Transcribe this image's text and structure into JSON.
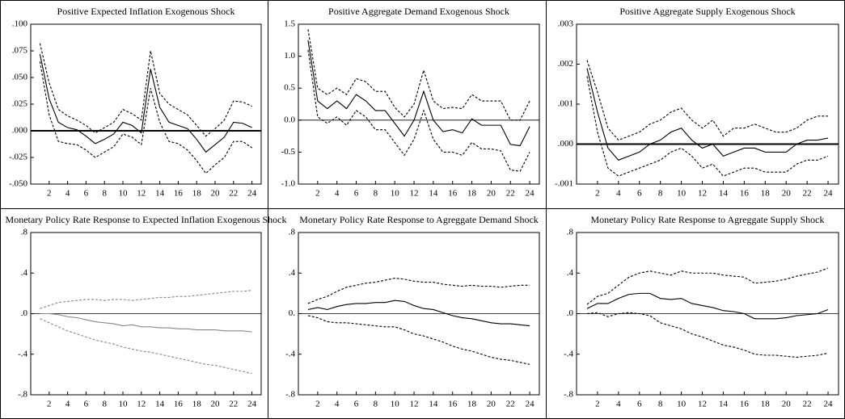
{
  "chart_data": [
    {
      "type": "line",
      "title": "Positive Expected Inflation Exogenous Shock",
      "x": [
        1,
        2,
        3,
        4,
        5,
        6,
        7,
        8,
        9,
        10,
        11,
        12,
        13,
        14,
        15,
        16,
        17,
        18,
        19,
        20,
        21,
        22,
        23,
        24
      ],
      "xlim": [
        0,
        25
      ],
      "xticks": [
        2,
        4,
        6,
        8,
        10,
        12,
        14,
        16,
        18,
        20,
        22,
        24
      ],
      "ylim": [
        -0.05,
        0.1
      ],
      "yticks": [
        {
          "value": 0.1,
          "label": ".100"
        },
        {
          "value": 0.075,
          "label": ".075"
        },
        {
          "value": 0.05,
          "label": ".050"
        },
        {
          "value": 0.025,
          "label": ".025"
        },
        {
          "value": 0,
          "label": ".000"
        },
        {
          "value": -0.025,
          "label": "-.025"
        },
        {
          "value": -0.05,
          "label": "-.050"
        }
      ],
      "reference_line": 0,
      "reference_line_bold": true,
      "series": [
        {
          "color": "#000000",
          "style": "solid",
          "values": [
            0.072,
            0.03,
            0.008,
            0.003,
            0.001,
            -0.005,
            -0.012,
            -0.008,
            -0.003,
            0.008,
            0.005,
            -0.002,
            0.058,
            0.022,
            0.008,
            0.005,
            0.002,
            -0.008,
            -0.02,
            -0.013,
            -0.006,
            0.008,
            0.007,
            0.003
          ]
        },
        {
          "color": "#000000",
          "style": "dashed",
          "values": [
            0.082,
            0.045,
            0.02,
            0.014,
            0.01,
            0.005,
            -0.002,
            0.003,
            0.008,
            0.02,
            0.016,
            0.01,
            0.075,
            0.035,
            0.025,
            0.02,
            0.015,
            0.005,
            -0.005,
            0.002,
            0.01,
            0.028,
            0.027,
            0.023
          ]
        },
        {
          "color": "#000000",
          "style": "dashed",
          "values": [
            0.065,
            0.015,
            -0.01,
            -0.012,
            -0.013,
            -0.018,
            -0.025,
            -0.02,
            -0.015,
            -0.003,
            -0.006,
            -0.013,
            0.04,
            0.008,
            -0.01,
            -0.012,
            -0.018,
            -0.028,
            -0.04,
            -0.032,
            -0.025,
            -0.01,
            -0.01,
            -0.016
          ]
        }
      ]
    },
    {
      "type": "line",
      "title": "Positive Aggregate Demand Exogenous Shock",
      "x": [
        1,
        2,
        3,
        4,
        5,
        6,
        7,
        8,
        9,
        10,
        11,
        12,
        13,
        14,
        15,
        16,
        17,
        18,
        19,
        20,
        21,
        22,
        23,
        24
      ],
      "xlim": [
        0,
        25
      ],
      "xticks": [
        2,
        4,
        6,
        8,
        10,
        12,
        14,
        16,
        18,
        20,
        22,
        24
      ],
      "ylim": [
        -1,
        1.5
      ],
      "yticks": [
        {
          "value": 1.5,
          "label": "1.5"
        },
        {
          "value": 1,
          "label": "1.0"
        },
        {
          "value": 0.5,
          "label": "0.5"
        },
        {
          "value": 0,
          "label": "0.0"
        },
        {
          "value": -0.5,
          "label": "-0.5"
        },
        {
          "value": -1,
          "label": "-1.0"
        }
      ],
      "reference_line": 0,
      "reference_line_bold": false,
      "series": [
        {
          "color": "#000000",
          "style": "solid",
          "values": [
            1.25,
            0.3,
            0.18,
            0.3,
            0.18,
            0.4,
            0.3,
            0.15,
            0.15,
            -0.05,
            -0.25,
            0.0,
            0.45,
            0.0,
            -0.18,
            -0.15,
            -0.2,
            0.02,
            -0.08,
            -0.08,
            -0.08,
            -0.38,
            -0.4,
            -0.1
          ]
        },
        {
          "color": "#000000",
          "style": "dashed",
          "values": [
            1.42,
            0.5,
            0.4,
            0.5,
            0.4,
            0.65,
            0.6,
            0.45,
            0.45,
            0.2,
            0.05,
            0.25,
            0.78,
            0.3,
            0.18,
            0.2,
            0.18,
            0.4,
            0.3,
            0.3,
            0.3,
            0.0,
            0.0,
            0.3
          ]
        },
        {
          "color": "#000000",
          "style": "dashed",
          "values": [
            1.1,
            0.05,
            -0.05,
            0.05,
            -0.08,
            0.15,
            0.05,
            -0.15,
            -0.15,
            -0.35,
            -0.55,
            -0.3,
            0.15,
            -0.3,
            -0.5,
            -0.5,
            -0.55,
            -0.35,
            -0.45,
            -0.45,
            -0.48,
            -0.78,
            -0.8,
            -0.5
          ]
        }
      ]
    },
    {
      "type": "line",
      "title": "Positive Aggregate Supply Exogenous Shock",
      "x": [
        1,
        2,
        3,
        4,
        5,
        6,
        7,
        8,
        9,
        10,
        11,
        12,
        13,
        14,
        15,
        16,
        17,
        18,
        19,
        20,
        21,
        22,
        23,
        24
      ],
      "xlim": [
        0,
        25
      ],
      "xticks": [
        2,
        4,
        6,
        8,
        10,
        12,
        14,
        16,
        18,
        20,
        22,
        24
      ],
      "ylim": [
        -0.001,
        0.003
      ],
      "yticks": [
        {
          "value": 0.003,
          "label": ".003"
        },
        {
          "value": 0.002,
          "label": ".002"
        },
        {
          "value": 0.001,
          "label": ".001"
        },
        {
          "value": 0,
          "label": ".000"
        },
        {
          "value": -0.001,
          "label": "-.001"
        }
      ],
      "reference_line": 0,
      "reference_line_bold": true,
      "series": [
        {
          "color": "#000000",
          "style": "solid",
          "values": [
            0.0019,
            0.0008,
            -0.0001,
            -0.0004,
            -0.0003,
            -0.0002,
            0.0,
            0.0001,
            0.0003,
            0.0004,
            0.0001,
            -0.0001,
            0.0,
            -0.0003,
            -0.0002,
            -0.0001,
            -0.0001,
            -0.0002,
            -0.0002,
            -0.0002,
            0.0,
            0.0001,
            0.0001,
            0.00015
          ]
        },
        {
          "color": "#000000",
          "style": "dashed",
          "values": [
            0.0021,
            0.0013,
            0.0004,
            0.0001,
            0.0002,
            0.0003,
            0.0005,
            0.0006,
            0.0008,
            0.0009,
            0.0006,
            0.0004,
            0.0006,
            0.0002,
            0.0004,
            0.0004,
            0.0005,
            0.0004,
            0.0003,
            0.0003,
            0.0004,
            0.0006,
            0.0007,
            0.0007
          ]
        },
        {
          "color": "#000000",
          "style": "dashed",
          "values": [
            0.0017,
            0.0003,
            -0.0006,
            -0.0008,
            -0.0007,
            -0.0006,
            -0.0005,
            -0.0004,
            -0.0002,
            -0.0001,
            -0.0003,
            -0.0006,
            -0.0005,
            -0.0008,
            -0.0007,
            -0.0006,
            -0.0006,
            -0.0007,
            -0.0007,
            -0.0007,
            -0.0005,
            -0.0004,
            -0.0004,
            -0.0003
          ]
        }
      ]
    },
    {
      "type": "line",
      "title": "Monetary Policy Rate Response to Expected Inflation Exogenous Shock",
      "x": [
        1,
        2,
        3,
        4,
        5,
        6,
        7,
        8,
        9,
        10,
        11,
        12,
        13,
        14,
        15,
        16,
        17,
        18,
        19,
        20,
        21,
        22,
        23,
        24
      ],
      "xlim": [
        0,
        25
      ],
      "xticks": [
        2,
        4,
        6,
        8,
        10,
        12,
        14,
        16,
        18,
        20,
        22,
        24
      ],
      "ylim": [
        -0.8,
        0.8
      ],
      "yticks": [
        {
          "value": 0.8,
          "label": ".8"
        },
        {
          "value": 0.4,
          "label": ".4"
        },
        {
          "value": 0,
          "label": ".0"
        },
        {
          "value": -0.4,
          "label": "-.4"
        },
        {
          "value": -0.8,
          "label": "-.8"
        }
      ],
      "reference_line": 0,
      "reference_line_bold": false,
      "series": [
        {
          "color": "#888888",
          "style": "solid",
          "values": [
            0,
            0,
            -0.01,
            -0.03,
            -0.04,
            -0.06,
            -0.08,
            -0.09,
            -0.1,
            -0.12,
            -0.11,
            -0.13,
            -0.13,
            -0.14,
            -0.14,
            -0.15,
            -0.15,
            -0.16,
            -0.16,
            -0.16,
            -0.17,
            -0.17,
            -0.17,
            -0.18
          ]
        },
        {
          "color": "#888888",
          "style": "dashed",
          "values": [
            0.05,
            0.08,
            0.11,
            0.12,
            0.13,
            0.14,
            0.14,
            0.13,
            0.14,
            0.14,
            0.13,
            0.14,
            0.15,
            0.16,
            0.16,
            0.17,
            0.17,
            0.18,
            0.19,
            0.2,
            0.21,
            0.22,
            0.22,
            0.23
          ]
        },
        {
          "color": "#888888",
          "style": "dashed",
          "values": [
            -0.05,
            -0.09,
            -0.13,
            -0.17,
            -0.2,
            -0.23,
            -0.26,
            -0.28,
            -0.3,
            -0.33,
            -0.35,
            -0.37,
            -0.38,
            -0.4,
            -0.42,
            -0.44,
            -0.46,
            -0.48,
            -0.5,
            -0.51,
            -0.53,
            -0.55,
            -0.57,
            -0.59
          ]
        }
      ]
    },
    {
      "type": "line",
      "title": "Monetary Policy Rate Response to Agreggate Demand Shock",
      "x": [
        1,
        2,
        3,
        4,
        5,
        6,
        7,
        8,
        9,
        10,
        11,
        12,
        13,
        14,
        15,
        16,
        17,
        18,
        19,
        20,
        21,
        22,
        23,
        24
      ],
      "xlim": [
        0,
        25
      ],
      "xticks": [
        2,
        4,
        6,
        8,
        10,
        12,
        14,
        16,
        18,
        20,
        22,
        24
      ],
      "ylim": [
        -0.8,
        0.8
      ],
      "yticks": [
        {
          "value": 0.8,
          "label": ".8"
        },
        {
          "value": 0.4,
          "label": ".4"
        },
        {
          "value": 0,
          "label": "0."
        },
        {
          "value": -0.4,
          "label": "-.4"
        },
        {
          "value": -0.8,
          "label": "-.8"
        }
      ],
      "reference_line": 0,
      "reference_line_bold": false,
      "series": [
        {
          "color": "#000000",
          "style": "solid",
          "values": [
            0.04,
            0.06,
            0.04,
            0.07,
            0.09,
            0.1,
            0.1,
            0.11,
            0.11,
            0.13,
            0.12,
            0.08,
            0.05,
            0.04,
            0.01,
            -0.02,
            -0.04,
            -0.05,
            -0.07,
            -0.09,
            -0.1,
            -0.1,
            -0.11,
            -0.12
          ]
        },
        {
          "color": "#000000",
          "style": "dashed",
          "values": [
            0.1,
            0.14,
            0.17,
            0.22,
            0.26,
            0.28,
            0.3,
            0.31,
            0.33,
            0.35,
            0.34,
            0.32,
            0.31,
            0.31,
            0.29,
            0.28,
            0.27,
            0.28,
            0.27,
            0.27,
            0.26,
            0.27,
            0.28,
            0.28
          ]
        },
        {
          "color": "#000000",
          "style": "dashed",
          "values": [
            -0.02,
            -0.04,
            -0.08,
            -0.09,
            -0.09,
            -0.1,
            -0.11,
            -0.12,
            -0.13,
            -0.13,
            -0.16,
            -0.2,
            -0.22,
            -0.25,
            -0.28,
            -0.32,
            -0.35,
            -0.37,
            -0.4,
            -0.43,
            -0.45,
            -0.46,
            -0.48,
            -0.5
          ]
        }
      ]
    },
    {
      "type": "line",
      "title": "Monetary Policy Rate Response to Agreggate Supply Shock",
      "x": [
        1,
        2,
        3,
        4,
        5,
        6,
        7,
        8,
        9,
        10,
        11,
        12,
        13,
        14,
        15,
        16,
        17,
        18,
        19,
        20,
        21,
        22,
        23,
        24
      ],
      "xlim": [
        0,
        25
      ],
      "xticks": [
        2,
        4,
        6,
        8,
        10,
        12,
        14,
        16,
        18,
        20,
        22,
        24
      ],
      "ylim": [
        -0.8,
        0.8
      ],
      "yticks": [
        {
          "value": 0.8,
          "label": ".8"
        },
        {
          "value": 0.4,
          "label": ".4"
        },
        {
          "value": 0,
          "label": ".0"
        },
        {
          "value": -0.4,
          "label": "-.4"
        },
        {
          "value": -0.8,
          "label": "-.8"
        }
      ],
      "reference_line": 0,
      "reference_line_bold": false,
      "series": [
        {
          "color": "#000000",
          "style": "solid",
          "values": [
            0.05,
            0.1,
            0.1,
            0.15,
            0.19,
            0.2,
            0.2,
            0.15,
            0.14,
            0.15,
            0.1,
            0.08,
            0.06,
            0.03,
            0.02,
            0.0,
            -0.05,
            -0.05,
            -0.05,
            -0.04,
            -0.02,
            -0.01,
            0.0,
            0.04
          ]
        },
        {
          "color": "#000000",
          "style": "dashed",
          "values": [
            0.09,
            0.17,
            0.2,
            0.28,
            0.36,
            0.4,
            0.42,
            0.4,
            0.38,
            0.42,
            0.4,
            0.4,
            0.4,
            0.38,
            0.37,
            0.36,
            0.3,
            0.31,
            0.32,
            0.34,
            0.37,
            0.39,
            0.41,
            0.45
          ]
        },
        {
          "color": "#000000",
          "style": "dashed",
          "values": [
            0.0,
            0.01,
            -0.03,
            0.0,
            0.01,
            0.0,
            -0.02,
            -0.09,
            -0.12,
            -0.15,
            -0.2,
            -0.23,
            -0.27,
            -0.31,
            -0.33,
            -0.36,
            -0.4,
            -0.41,
            -0.41,
            -0.42,
            -0.43,
            -0.42,
            -0.41,
            -0.39
          ]
        }
      ]
    }
  ]
}
